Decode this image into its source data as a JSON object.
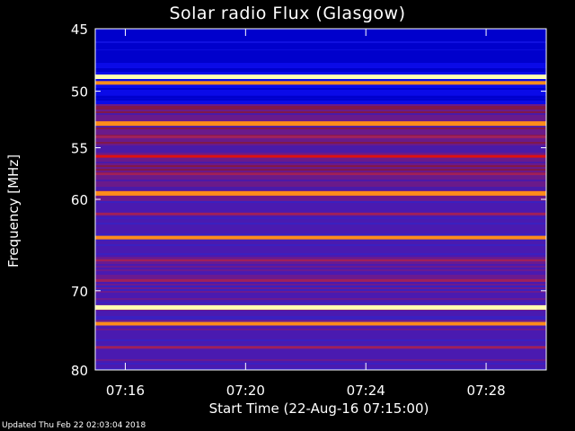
{
  "chart_data": {
    "type": "heatmap",
    "title": "Solar radio Flux (Glasgow)",
    "ylabel": "Frequency [MHz]",
    "xlabel": "Start Time (22-Aug-16 07:15:00)",
    "y_ticks": [
      45,
      50,
      55,
      60,
      70,
      80
    ],
    "x_ticks": [
      "07:16",
      "07:20",
      "07:24",
      "07:28"
    ],
    "ylim": [
      45,
      80
    ],
    "xlim": [
      "07:15:00",
      "07:30:00"
    ],
    "y_scale": "log",
    "colormap": [
      "#0000cc",
      "#5a1ab0",
      "#a0205a",
      "#e01010",
      "#ff8c1a",
      "#ffffb0"
    ],
    "bands": [
      {
        "freq": 46.5,
        "level": 0.05
      },
      {
        "freq": 48.8,
        "level": 0.95
      },
      {
        "freq": 49.3,
        "level": 0.7
      },
      {
        "freq": 50.5,
        "level": 0.08
      },
      {
        "freq": 52.8,
        "level": 0.85
      },
      {
        "freq": 54.0,
        "level": 0.35
      },
      {
        "freq": 55.8,
        "level": 0.5
      },
      {
        "freq": 57.5,
        "level": 0.45
      },
      {
        "freq": 59.4,
        "level": 0.85
      },
      {
        "freq": 61.5,
        "level": 0.4
      },
      {
        "freq": 64.0,
        "level": 0.75
      },
      {
        "freq": 66.5,
        "level": 0.35
      },
      {
        "freq": 68.8,
        "level": 0.45
      },
      {
        "freq": 72.0,
        "level": 0.95
      },
      {
        "freq": 74.0,
        "level": 0.8
      },
      {
        "freq": 77.0,
        "level": 0.3
      }
    ]
  },
  "footer": "Updated Thu Feb 22 02:03:04 2018"
}
